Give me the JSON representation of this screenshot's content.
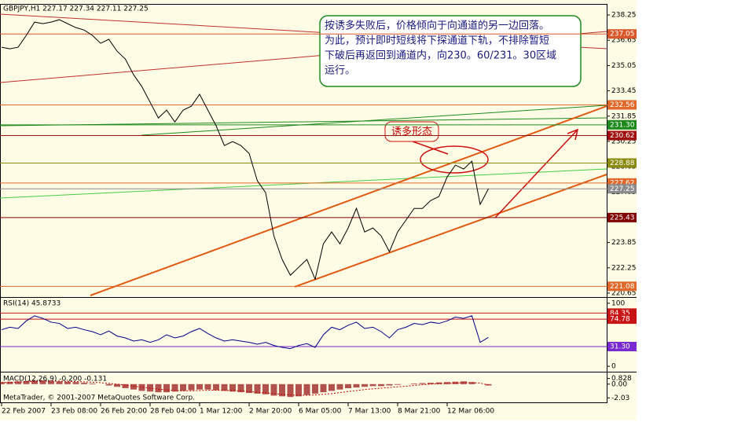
{
  "chart_data": [
    {
      "type": "line",
      "title": "GBPJPY,H1  227.17 227.34 227.11 227.25",
      "categories": [
        "22 Feb 2007",
        null,
        null,
        null,
        null,
        null,
        "23 Feb 08:00",
        null,
        null,
        null,
        null,
        null,
        "26 Feb 20:00",
        null,
        null,
        null,
        null,
        null,
        "28 Feb 04:00",
        null,
        null,
        null,
        null,
        null,
        "1 Mar 12:00",
        null,
        null,
        null,
        null,
        null,
        "2 Mar 20:00",
        null,
        null,
        null,
        null,
        null,
        "6 Mar 05:00",
        null,
        null,
        null,
        null,
        null,
        "7 Mar 13:00",
        null,
        null,
        null,
        null,
        null,
        "8 Mar 21:00",
        null,
        null,
        null,
        null,
        null,
        "12 Mar 06:00",
        null,
        null,
        null,
        null,
        null
      ],
      "values": [
        236.21,
        236.11,
        236.21,
        236.96,
        237.8,
        237.7,
        237.8,
        237.95,
        237.7,
        237.45,
        237.3,
        236.96,
        236.46,
        236.71,
        235.96,
        235.46,
        234.47,
        233.72,
        232.73,
        231.73,
        232.23,
        231.48,
        232.23,
        232.48,
        233.23,
        232.23,
        231.24,
        229.99,
        230.24,
        229.99,
        229.49,
        227.75,
        227.01,
        224.27,
        222.78,
        221.78,
        222.28,
        222.78,
        221.53,
        223.77,
        224.52,
        223.77,
        224.77,
        226.01,
        224.52,
        224.77,
        224.27,
        223.27,
        224.52,
        225.26,
        226.01,
        226.01,
        226.51,
        226.76,
        228.0,
        228.75,
        228.5,
        229.0,
        226.26,
        227.25
      ],
      "color": "#000000",
      "ylim": [
        220.4,
        238.8
      ],
      "yticks": [
        238.25,
        236.65,
        235.05,
        233.45,
        231.85,
        230.25,
        228.65,
        227.05,
        225.45,
        223.85,
        222.25,
        220.65
      ],
      "levels": [
        {
          "value": 237.05,
          "label": "237.05",
          "color": "#d8582a"
        },
        {
          "value": 232.56,
          "label": "232.56",
          "color": "#e0682a"
        },
        {
          "value": 231.3,
          "label": "231.30",
          "color": "#1e8a1e"
        },
        {
          "value": 230.62,
          "label": "230.62",
          "color": "#a01010"
        },
        {
          "value": 228.88,
          "label": "228.88",
          "color": "#8c8c10"
        },
        {
          "value": 227.62,
          "label": "227.62",
          "color": "#e0682a"
        },
        {
          "value": 227.25,
          "label": "227.25",
          "color": "#8c8c8c"
        },
        {
          "value": 225.43,
          "label": "225.43",
          "color": "#800000"
        },
        {
          "value": 221.08,
          "label": "221.08",
          "color": "#e0682a"
        }
      ],
      "annotation": [
        "按诱多失败后，价格倾向于向通道的另一边回落。",
        "为此，预计即时短线将下探通道下轨，不排除暂短",
        "下破后再返回到通道内，向230。60/231。30区域",
        "运行。"
      ],
      "callout": "诱多形态"
    },
    {
      "type": "line",
      "title": "RSI(14) 45.8733",
      "values": [
        58,
        62,
        60,
        72,
        80,
        76,
        70,
        68,
        60,
        62,
        58,
        55,
        50,
        56,
        48,
        45,
        40,
        42,
        38,
        42,
        50,
        45,
        48,
        55,
        60,
        52,
        45,
        40,
        42,
        40,
        38,
        35,
        38,
        33,
        30,
        28,
        33,
        36,
        30,
        50,
        62,
        58,
        65,
        70,
        60,
        62,
        55,
        45,
        58,
        62,
        68,
        66,
        70,
        68,
        72,
        78,
        76,
        80,
        38,
        45.8733
      ],
      "color": "#00008b",
      "ylim": [
        -7.3,
        107.3
      ],
      "yticks": [
        0,
        100
      ],
      "levels": [
        {
          "value": 84.35,
          "label": "84.35",
          "color": "#c81414"
        },
        {
          "value": 74.78,
          "label": "74.78",
          "color": "#c81414"
        },
        {
          "value": 31.3,
          "label": "31.30",
          "color": "#7a2ad0"
        }
      ]
    },
    {
      "type": "bar",
      "title": "MACD(12,26,9) -0.200 -0.131",
      "values": [
        0.3,
        0.35,
        0.4,
        0.45,
        0.5,
        0.5,
        0.45,
        0.4,
        0.35,
        0.3,
        0.2,
        0.1,
        0,
        -0.2,
        -0.4,
        -0.6,
        -0.8,
        -1.0,
        -1.1,
        -1.2,
        -1.2,
        -1.1,
        -1.0,
        -0.9,
        -0.8,
        -0.8,
        -0.9,
        -1.0,
        -1.1,
        -1.2,
        -1.3,
        -1.4,
        -1.5,
        -1.7,
        -1.8,
        -1.9,
        -1.8,
        -1.6,
        -1.4,
        -1.2,
        -1.0,
        -0.8,
        -0.6,
        -0.5,
        -0.4,
        -0.3,
        -0.3,
        -0.2,
        -0.1,
        0,
        0.1,
        0.15,
        0.2,
        0.25,
        0.3,
        0.35,
        0.4,
        0.3,
        0.0,
        -0.2
      ],
      "color": "#9a1a1a",
      "signal": [
        0.2,
        0.25,
        0.3,
        0.35,
        0.4,
        0.45,
        0.45,
        0.45,
        0.4,
        0.38,
        0.33,
        0.28,
        0.2,
        0.1,
        0,
        -0.15,
        -0.3,
        -0.45,
        -0.6,
        -0.75,
        -0.85,
        -0.95,
        -1.0,
        -1.0,
        -0.95,
        -0.9,
        -0.9,
        -0.92,
        -0.95,
        -1.0,
        -1.1,
        -1.2,
        -1.3,
        -1.4,
        -1.5,
        -1.6,
        -1.65,
        -1.65,
        -1.6,
        -1.5,
        -1.4,
        -1.25,
        -1.1,
        -0.95,
        -0.8,
        -0.7,
        -0.6,
        -0.5,
        -0.4,
        -0.3,
        -0.2,
        -0.1,
        0,
        0.05,
        0.1,
        0.15,
        0.2,
        0.2,
        0.15,
        -0.131
      ],
      "signal_color": "#c00000",
      "ylim": [
        -2.69,
        1.597
      ],
      "yticks": [
        0.828,
        {
          "value": 0,
          "label": "0.00"
        },
        -2.03
      ],
      "footer": "MetaTrader, © 2001-2007 MetaQuotes Software Corp."
    }
  ]
}
